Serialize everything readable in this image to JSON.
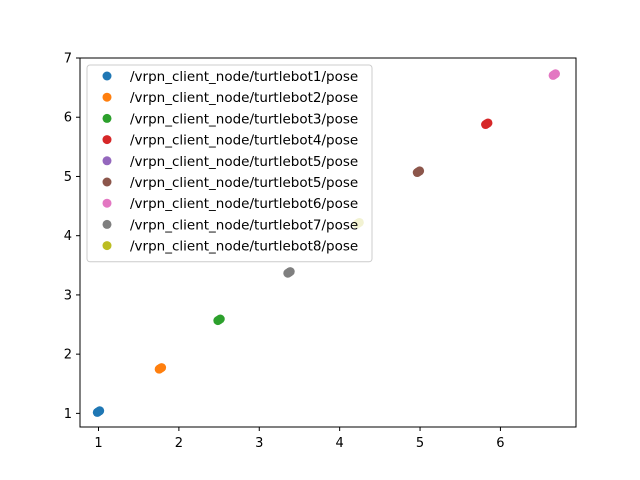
{
  "chart_data": {
    "type": "scatter",
    "title": "",
    "xlabel": "",
    "ylabel": "",
    "xlim": [
      0.77,
      6.94
    ],
    "ylim": [
      0.77,
      7.0
    ],
    "xticks": [
      1,
      2,
      3,
      4,
      5,
      6
    ],
    "yticks": [
      1,
      2,
      3,
      4,
      5,
      6,
      7
    ],
    "grid": false,
    "legend_position": "upper-left",
    "series": [
      {
        "name": "/vrpn_client_node/turtlebot1/pose",
        "color": "#1f77b4",
        "x": [
          1.0
        ],
        "y": [
          1.03
        ]
      },
      {
        "name": "/vrpn_client_node/turtlebot2/pose",
        "color": "#ff7f0e",
        "x": [
          1.77
        ],
        "y": [
          1.76
        ]
      },
      {
        "name": "/vrpn_client_node/turtlebot3/pose",
        "color": "#2ca02c",
        "x": [
          2.5
        ],
        "y": [
          2.58
        ]
      },
      {
        "name": "/vrpn_client_node/turtlebot4/pose",
        "color": "#d62728",
        "x": [
          5.83
        ],
        "y": [
          5.89
        ]
      },
      {
        "name": "/vrpn_client_node/turtlebot5/pose",
        "color": "#9467bd",
        "x": [],
        "y": []
      },
      {
        "name": "/vrpn_client_node/turtlebot5/pose",
        "color": "#8c564b",
        "x": [
          4.98
        ],
        "y": [
          5.08
        ]
      },
      {
        "name": "/vrpn_client_node/turtlebot6/pose",
        "color": "#e377c2",
        "x": [
          6.67
        ],
        "y": [
          6.72
        ]
      },
      {
        "name": "/vrpn_client_node/turtlebot7/pose",
        "color": "#7f7f7f",
        "x": [
          3.37
        ],
        "y": [
          3.38
        ]
      },
      {
        "name": "/vrpn_client_node/turtlebot8/pose",
        "color": "#bcbd22",
        "x": [
          4.23
        ],
        "y": [
          4.21
        ]
      }
    ]
  }
}
